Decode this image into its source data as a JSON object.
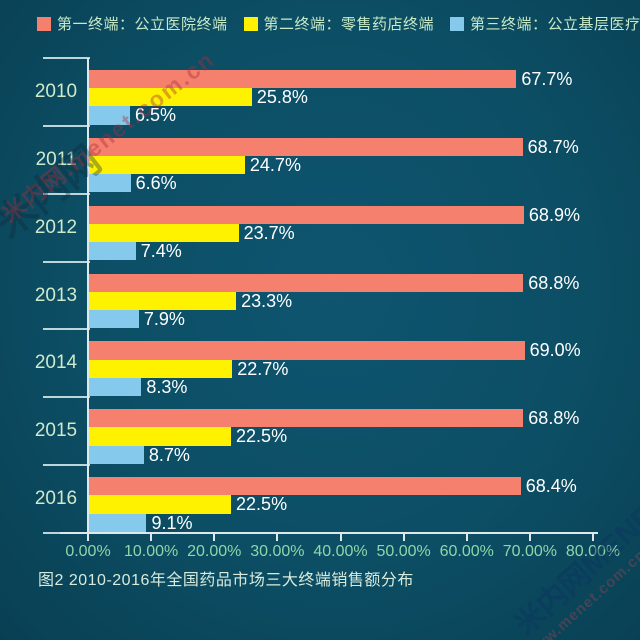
{
  "legend": [
    {
      "label": "第一终端：公立医院终端"
    },
    {
      "label": "第二终端：零售药店终端"
    },
    {
      "label": "第三终端：公立基层医疗终端"
    }
  ],
  "chart_data": {
    "type": "bar",
    "orientation": "horizontal",
    "categories": [
      "2010",
      "2011",
      "2012",
      "2013",
      "2014",
      "2015",
      "2016"
    ],
    "series": [
      {
        "name": "第一终端：公立医院终端",
        "color": "#f5806e",
        "values": [
          67.7,
          68.7,
          68.9,
          68.8,
          69.0,
          68.8,
          68.4
        ]
      },
      {
        "name": "第二终端：零售药店终端",
        "color": "#fff200",
        "values": [
          25.8,
          24.7,
          23.7,
          23.3,
          22.7,
          22.5,
          22.5
        ]
      },
      {
        "name": "第三终端：公立基层医疗终端",
        "color": "#85c9ec",
        "values": [
          6.5,
          6.6,
          7.4,
          7.9,
          8.3,
          8.7,
          9.1
        ]
      }
    ],
    "value_suffix": "%",
    "xlabel_ticks": [
      "0.00%",
      "10.00%",
      "20.00%",
      "30.00%",
      "40.00%",
      "50.00%",
      "60.00%",
      "70.00%",
      "80.00%"
    ],
    "xlim": [
      0,
      80
    ],
    "grid": false,
    "legend_position": "top",
    "title": "图2  2010-2016年全国药品市场三大终端销售额分布"
  },
  "caption": "图2  2010-2016年全国药品市场三大终端销售额分布",
  "watermarks": {
    "top_left_text": "米内网.menet.com.cn",
    "top_left_logo": "米内网",
    "bottom_right_title": "米内网MENET",
    "bottom_right_sub": "www.menet.com.cn"
  },
  "colors": {
    "background": "#0c4e64",
    "terminal1_bar": "#f5806e",
    "terminal2_bar": "#fff200",
    "terminal3_bar": "#85c9ec",
    "axis_line": "#dfe9ec",
    "year_label": "#cfe9cb",
    "tick_label": "#8fd6a9",
    "value_label": "#ffffff",
    "legend_text": "#c7e9c7"
  }
}
